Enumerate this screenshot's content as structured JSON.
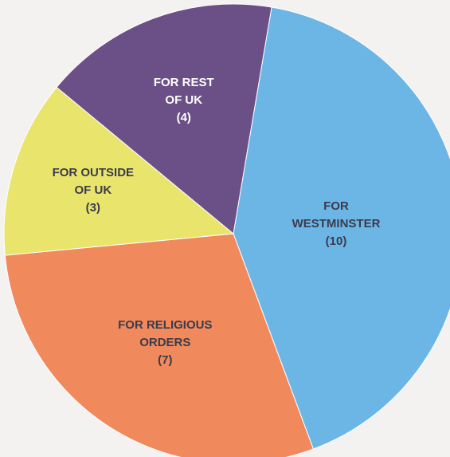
{
  "chart_data": {
    "type": "pie",
    "categories": [
      "FOR WESTMINSTER",
      "FOR RELIGIOUS ORDERS",
      "FOR OUTSIDE OF UK",
      "FOR REST OF UK"
    ],
    "values": [
      10,
      7,
      3,
      4
    ],
    "value_labels": [
      "(10)",
      "(7)",
      "(3)",
      "(4)"
    ],
    "colors": [
      "#6cb6e6",
      "#f0895b",
      "#e9e56c",
      "#6b5087"
    ]
  }
}
